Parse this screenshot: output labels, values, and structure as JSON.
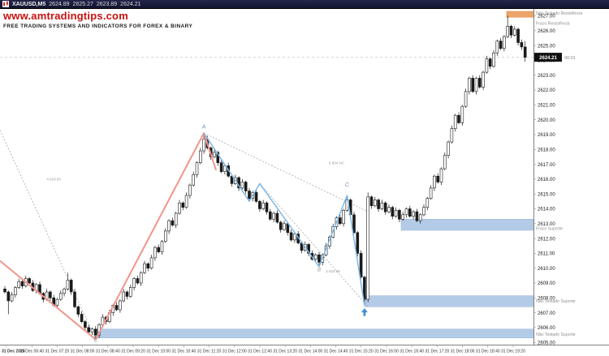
{
  "titlebar": {
    "symbol": "XAUUSD,M5",
    "open": "2624.89",
    "high": "2625.27",
    "low": "2623.89",
    "close": "2624.21"
  },
  "watermark": {
    "line1": "www.amtradingtips.com",
    "line2": "FREE TRADING SYSTEMS AND INDICATORS FOR FOREX & BINARY"
  },
  "chart_data": {
    "type": "candlestick",
    "title": "XAUUSD,M5",
    "symbol": "XAUUSD",
    "timeframe": "M5",
    "current_price": 2624.21,
    "countdown": "00:01",
    "y_axis": {
      "price_top": 2627.3,
      "price_bottom": 2604.85,
      "tick_min": 2605,
      "tick_max": 2627,
      "tick_step": 1,
      "decimals": 2
    },
    "x_axis": {
      "labels": [
        "31 Dec 2024",
        "31 Dec 06:40",
        "31 Dec 07:20",
        "31 Dec 08:00",
        "31 Dec 08:40",
        "31 Dec 09:20",
        "31 Dec 10:00",
        "31 Dec 10:40",
        "31 Dec 11:20",
        "31 Dec 12:00",
        "31 Dec 12:40",
        "31 Dec 13:20",
        "31 Dec 14:00",
        "31 Dec 14:40",
        "31 Dec 15:20",
        "31 Dec 16:00",
        "31 Dec 16:40",
        "31 Dec 17:20",
        "31 Dec 18:00",
        "31 Dec 18:40",
        "31 Dec 19:20"
      ]
    },
    "candles": [
      [
        2608.6,
        2608.8,
        2608.3,
        2608.4
      ],
      [
        2608.4,
        2608.5,
        2606.9,
        2607.8
      ],
      [
        2607.8,
        2608.4,
        2607.7,
        2608.2
      ],
      [
        2608.2,
        2608.8,
        2608.0,
        2608.7
      ],
      [
        2608.7,
        2609.3,
        2608.6,
        2609.1
      ],
      [
        2609.1,
        2609.2,
        2608.6,
        2608.8
      ],
      [
        2608.8,
        2609.5,
        2608.7,
        2609.3
      ],
      [
        2609.3,
        2609.4,
        2608.8,
        2609.0
      ],
      [
        2609.0,
        2609.2,
        2608.4,
        2608.5
      ],
      [
        2608.5,
        2609.0,
        2608.3,
        2608.9
      ],
      [
        2608.9,
        2609.1,
        2608.2,
        2608.3
      ],
      [
        2608.3,
        2608.4,
        2607.7,
        2607.9
      ],
      [
        2607.9,
        2608.6,
        2607.8,
        2608.4
      ],
      [
        2608.4,
        2608.5,
        2607.8,
        2608.0
      ],
      [
        2608.0,
        2608.2,
        2607.4,
        2607.5
      ],
      [
        2607.5,
        2608.0,
        2607.3,
        2607.9
      ],
      [
        2607.9,
        2608.5,
        2607.8,
        2608.3
      ],
      [
        2608.3,
        2608.7,
        2608.1,
        2608.6
      ],
      [
        2608.6,
        2609.7,
        2608.5,
        2609.2
      ],
      [
        2609.2,
        2609.3,
        2608.2,
        2608.4
      ],
      [
        2608.4,
        2608.6,
        2607.3,
        2607.4
      ],
      [
        2607.4,
        2607.5,
        2606.7,
        2606.9
      ],
      [
        2606.9,
        2607.1,
        2606.3,
        2606.4
      ],
      [
        2606.4,
        2606.5,
        2605.8,
        2606.0
      ],
      [
        2606.0,
        2606.2,
        2605.6,
        2605.7
      ],
      [
        2605.7,
        2606.0,
        2605.5,
        2605.9
      ],
      [
        2605.9,
        2606.1,
        2605.2,
        2605.5
      ],
      [
        2605.5,
        2606.3,
        2605.3,
        2606.2
      ],
      [
        2606.2,
        2606.9,
        2606.1,
        2606.7
      ],
      [
        2606.7,
        2606.8,
        2606.2,
        2606.4
      ],
      [
        2606.4,
        2607.2,
        2606.3,
        2607.0
      ],
      [
        2607.0,
        2607.6,
        2606.8,
        2607.5
      ],
      [
        2607.5,
        2607.7,
        2607.1,
        2607.2
      ],
      [
        2607.2,
        2607.9,
        2607.0,
        2607.8
      ],
      [
        2607.8,
        2608.6,
        2607.7,
        2608.4
      ],
      [
        2608.4,
        2608.5,
        2607.9,
        2608.1
      ],
      [
        2608.1,
        2608.9,
        2608.0,
        2608.7
      ],
      [
        2608.7,
        2609.4,
        2608.5,
        2609.3
      ],
      [
        2609.3,
        2609.5,
        2608.9,
        2609.0
      ],
      [
        2609.0,
        2609.8,
        2608.8,
        2609.7
      ],
      [
        2609.7,
        2610.5,
        2609.6,
        2610.3
      ],
      [
        2610.3,
        2610.4,
        2609.8,
        2610.0
      ],
      [
        2610.0,
        2610.9,
        2609.9,
        2610.7
      ],
      [
        2610.7,
        2611.5,
        2610.5,
        2611.4
      ],
      [
        2611.4,
        2611.6,
        2611.0,
        2611.1
      ],
      [
        2611.1,
        2611.9,
        2610.9,
        2611.8
      ],
      [
        2611.8,
        2612.7,
        2611.7,
        2612.5
      ],
      [
        2612.5,
        2613.3,
        2612.3,
        2613.2
      ],
      [
        2613.2,
        2613.4,
        2612.8,
        2612.9
      ],
      [
        2612.9,
        2613.8,
        2612.7,
        2613.7
      ],
      [
        2613.7,
        2614.6,
        2613.6,
        2614.4
      ],
      [
        2614.4,
        2614.5,
        2613.9,
        2614.1
      ],
      [
        2614.1,
        2615.1,
        2614.0,
        2614.9
      ],
      [
        2614.9,
        2615.7,
        2614.7,
        2615.6
      ],
      [
        2615.6,
        2616.5,
        2615.5,
        2616.3
      ],
      [
        2616.3,
        2617.2,
        2616.1,
        2617.1
      ],
      [
        2617.1,
        2618.1,
        2617.0,
        2617.9
      ],
      [
        2617.9,
        2619.1,
        2617.7,
        2618.7
      ],
      [
        2618.7,
        2618.9,
        2618.0,
        2618.1
      ],
      [
        2618.1,
        2618.2,
        2617.3,
        2617.5
      ],
      [
        2617.5,
        2618.0,
        2617.4,
        2617.8
      ],
      [
        2617.8,
        2617.9,
        2616.9,
        2617.1
      ],
      [
        2617.1,
        2617.3,
        2616.4,
        2616.5
      ],
      [
        2616.5,
        2617.0,
        2616.3,
        2616.9
      ],
      [
        2616.9,
        2617.1,
        2616.1,
        2616.2
      ],
      [
        2616.2,
        2616.3,
        2615.5,
        2615.7
      ],
      [
        2615.7,
        2616.3,
        2615.6,
        2616.1
      ],
      [
        2616.1,
        2616.2,
        2615.2,
        2615.4
      ],
      [
        2615.4,
        2616.0,
        2615.3,
        2615.8
      ],
      [
        2615.8,
        2615.9,
        2615.0,
        2615.2
      ],
      [
        2615.2,
        2615.4,
        2614.6,
        2614.7
      ],
      [
        2614.7,
        2615.2,
        2614.5,
        2615.1
      ],
      [
        2615.1,
        2615.3,
        2614.4,
        2614.5
      ],
      [
        2614.5,
        2614.6,
        2613.8,
        2614.0
      ],
      [
        2614.0,
        2614.6,
        2613.9,
        2614.4
      ],
      [
        2614.4,
        2614.5,
        2613.6,
        2613.8
      ],
      [
        2613.8,
        2614.0,
        2613.2,
        2613.3
      ],
      [
        2613.3,
        2613.8,
        2613.1,
        2613.7
      ],
      [
        2613.7,
        2613.9,
        2613.0,
        2613.1
      ],
      [
        2613.1,
        2613.2,
        2612.4,
        2612.6
      ],
      [
        2612.6,
        2613.2,
        2612.5,
        2613.0
      ],
      [
        2613.0,
        2613.1,
        2612.2,
        2612.4
      ],
      [
        2612.4,
        2612.6,
        2611.8,
        2611.9
      ],
      [
        2611.9,
        2612.4,
        2611.7,
        2612.3
      ],
      [
        2612.3,
        2612.5,
        2611.6,
        2611.7
      ],
      [
        2611.7,
        2611.8,
        2611.0,
        2611.2
      ],
      [
        2611.2,
        2611.8,
        2611.1,
        2611.6
      ],
      [
        2611.6,
        2611.7,
        2610.8,
        2611.0
      ],
      [
        2611.0,
        2611.2,
        2610.5,
        2610.6
      ],
      [
        2610.6,
        2611.0,
        2610.4,
        2610.9
      ],
      [
        2610.9,
        2611.1,
        2610.1,
        2610.4
      ],
      [
        2610.4,
        2611.0,
        2610.2,
        2610.9
      ],
      [
        2610.9,
        2611.7,
        2610.8,
        2611.5
      ],
      [
        2611.5,
        2612.2,
        2611.3,
        2612.1
      ],
      [
        2612.1,
        2613.0,
        2612.0,
        2612.8
      ],
      [
        2612.8,
        2613.5,
        2612.6,
        2613.4
      ],
      [
        2613.4,
        2613.6,
        2612.9,
        2613.0
      ],
      [
        2613.0,
        2614.0,
        2612.8,
        2613.9
      ],
      [
        2613.9,
        2614.9,
        2613.8,
        2614.6
      ],
      [
        2614.6,
        2614.7,
        2613.4,
        2613.6
      ],
      [
        2613.6,
        2613.8,
        2612.3,
        2612.4
      ],
      [
        2612.4,
        2612.5,
        2610.8,
        2611.0
      ],
      [
        2611.0,
        2611.2,
        2609.3,
        2609.4
      ],
      [
        2609.4,
        2609.5,
        2607.5,
        2607.9
      ],
      [
        2607.9,
        2615.1,
        2607.7,
        2614.8
      ],
      [
        2614.8,
        2614.9,
        2614.0,
        2614.2
      ],
      [
        2614.2,
        2614.8,
        2614.1,
        2614.6
      ],
      [
        2614.6,
        2614.7,
        2613.8,
        2614.0
      ],
      [
        2614.0,
        2614.6,
        2613.9,
        2614.4
      ],
      [
        2614.4,
        2614.5,
        2613.6,
        2613.8
      ],
      [
        2613.8,
        2614.3,
        2613.7,
        2614.1
      ],
      [
        2614.1,
        2614.2,
        2613.3,
        2613.5
      ],
      [
        2613.5,
        2614.1,
        2613.4,
        2613.9
      ],
      [
        2613.9,
        2614.0,
        2613.1,
        2613.3
      ],
      [
        2613.3,
        2613.8,
        2613.2,
        2613.6
      ],
      [
        2613.6,
        2614.1,
        2613.4,
        2614.0
      ],
      [
        2614.0,
        2614.2,
        2613.4,
        2613.5
      ],
      [
        2613.5,
        2613.9,
        2613.3,
        2613.8
      ],
      [
        2613.8,
        2614.0,
        2613.1,
        2613.2
      ],
      [
        2613.2,
        2613.7,
        2613.0,
        2613.6
      ],
      [
        2613.6,
        2614.3,
        2613.5,
        2614.1
      ],
      [
        2614.1,
        2614.8,
        2613.9,
        2614.7
      ],
      [
        2614.7,
        2615.6,
        2614.6,
        2615.4
      ],
      [
        2615.4,
        2616.3,
        2615.2,
        2616.2
      ],
      [
        2616.2,
        2616.4,
        2615.7,
        2615.8
      ],
      [
        2615.8,
        2616.8,
        2615.6,
        2616.7
      ],
      [
        2616.7,
        2617.8,
        2616.6,
        2617.6
      ],
      [
        2617.6,
        2618.6,
        2617.4,
        2618.5
      ],
      [
        2618.5,
        2619.6,
        2618.4,
        2619.4
      ],
      [
        2619.4,
        2620.4,
        2619.2,
        2620.3
      ],
      [
        2620.3,
        2620.5,
        2619.7,
        2619.8
      ],
      [
        2619.8,
        2621.0,
        2619.6,
        2620.9
      ],
      [
        2620.9,
        2622.1,
        2620.8,
        2621.9
      ],
      [
        2621.9,
        2622.9,
        2621.7,
        2622.8
      ],
      [
        2622.8,
        2623.0,
        2621.8,
        2621.9
      ],
      [
        2621.9,
        2622.9,
        2621.7,
        2622.8
      ],
      [
        2622.8,
        2623.0,
        2622.1,
        2622.2
      ],
      [
        2622.2,
        2623.3,
        2622.0,
        2623.2
      ],
      [
        2623.2,
        2624.3,
        2623.1,
        2624.1
      ],
      [
        2624.1,
        2624.2,
        2623.4,
        2623.6
      ],
      [
        2623.6,
        2624.7,
        2623.5,
        2624.5
      ],
      [
        2624.5,
        2625.4,
        2624.3,
        2625.3
      ],
      [
        2625.3,
        2625.5,
        2624.7,
        2624.8
      ],
      [
        2624.8,
        2625.7,
        2624.6,
        2625.6
      ],
      [
        2625.6,
        2627.0,
        2625.5,
        2626.3
      ],
      [
        2626.3,
        2626.4,
        2625.5,
        2625.7
      ],
      [
        2625.7,
        2626.3,
        2625.6,
        2626.1
      ],
      [
        2626.1,
        2626.2,
        2625.0,
        2625.2
      ],
      [
        2625.2,
        2625.4,
        2624.7,
        2624.9
      ],
      [
        2624.9,
        2625.3,
        2623.9,
        2624.2
      ]
    ],
    "zones": [
      {
        "kind": "resistance",
        "label": "Não Testado Resistência",
        "color": "#eda469",
        "border": "#d5884e",
        "from_index": 143.7,
        "price_top": 2627.3,
        "price_bottom": 2626.9,
        "label_price": 2627.2
      },
      {
        "kind": "resistance",
        "label": "Fraco Resistência",
        "color": null,
        "border": null,
        "from_index": null,
        "price_top": null,
        "price_bottom": null,
        "label_price": 2626.5
      },
      {
        "kind": "support",
        "label": "Fraco Suporte",
        "color": "#b3cbe6",
        "border": "#97b6da",
        "from_index": 113.5,
        "price_top": 2613.3,
        "price_bottom": 2612.55,
        "label_price": 2612.7
      },
      {
        "kind": "support",
        "label": "Não Testado Suporte",
        "color": "#b3cbe6",
        "border": "#97b6da",
        "from_index": 103,
        "price_top": 2608.15,
        "price_bottom": 2607.4,
        "label_price": 2607.8
      },
      {
        "kind": "support",
        "label": "Não Testado Suporte",
        "color": "#b3cbe6",
        "border": "#97b6da",
        "from_index": 25.6,
        "price_top": 2605.9,
        "price_bottom": 2605.3,
        "label_price": 2605.55
      }
    ],
    "zigzag_major": {
      "color": "#f2958a",
      "width": 2,
      "points": [
        [
          -1.4,
          2610.5
        ],
        [
          26,
          2605.2
        ],
        [
          57,
          2619.1
        ],
        [
          60.5,
          2616.6
        ]
      ]
    },
    "zigzag_minor": {
      "color": "#7db8e8",
      "width": 1.5,
      "points": [
        [
          57,
          2619.1
        ],
        [
          70,
          2614.5
        ],
        [
          73,
          2615.7
        ],
        [
          90,
          2610.1
        ],
        [
          98,
          2614.9
        ],
        [
          103,
          2607.5
        ]
      ]
    },
    "trendlines": [
      {
        "points": [
          [
            -1.4,
            2619.3
          ],
          [
            26,
            2605.2
          ]
        ]
      },
      {
        "points": [
          [
            57,
            2619.1
          ],
          [
            104,
            2613.8
          ]
        ]
      },
      {
        "points": [
          [
            73,
            2615.7
          ],
          [
            104,
            2607.4
          ]
        ]
      }
    ],
    "labels": [
      {
        "text": "A",
        "index": 57,
        "price": 2619.4,
        "size": 7,
        "color": "#7195bb",
        "italic": true
      },
      {
        "text": "C",
        "index": 98,
        "price": 2615.5,
        "size": 7,
        "color": "#7195bb",
        "italic": true
      },
      {
        "text": "B",
        "index": 90,
        "price": 2609.8,
        "size": 6,
        "color": "#9a9a9a",
        "italic": true
      },
      {
        "text": "C",
        "index": 26,
        "price": 2605.05,
        "size": 6,
        "color": "#8a8a8a",
        "italic": true
      },
      {
        "text": "4.618 60",
        "index": 14,
        "price": 2615.9,
        "size": 4.5,
        "color": "#9a9a9a",
        "italic": false
      },
      {
        "text": "6.604 NC",
        "index": 95,
        "price": 2617.0,
        "size": 4.5,
        "color": "#9a9a9a",
        "italic": false
      },
      {
        "text": "2.618 60",
        "index": 94,
        "price": 2609.7,
        "size": 4.5,
        "color": "#9a9a9a",
        "italic": false
      }
    ],
    "arrow": {
      "index": 103,
      "price": 2607.3,
      "color": "#3f8fd6"
    }
  }
}
